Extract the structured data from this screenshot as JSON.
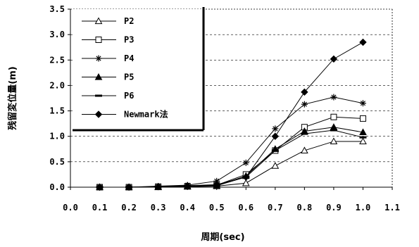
{
  "chart_data": {
    "type": "line",
    "xlabel": "周期(sec)",
    "ylabel": "残留変位量(m)",
    "xlim": [
      0.0,
      1.1
    ],
    "ylim": [
      0.0,
      3.5
    ],
    "x_ticks": [
      "0.0",
      "0.1",
      "0.2",
      "0.3",
      "0.4",
      "0.5",
      "0.6",
      "0.7",
      "0.8",
      "0.9",
      "1.0",
      "1.1"
    ],
    "y_ticks": [
      "0.0",
      "0.5",
      "1.0",
      "1.5",
      "2.0",
      "2.5",
      "3.0",
      "3.5"
    ],
    "grid": "horizontal dashed",
    "legend_position": "top-left",
    "x": [
      0.1,
      0.2,
      0.3,
      0.4,
      0.5,
      0.6,
      0.7,
      0.8,
      0.9,
      1.0
    ],
    "series": [
      {
        "name": "P2",
        "marker": "triangle-open",
        "values": [
          0.0,
          0.0,
          0.0,
          0.01,
          0.02,
          0.08,
          0.42,
          0.72,
          0.9,
          0.9
        ]
      },
      {
        "name": "P3",
        "marker": "square-open",
        "values": [
          0.0,
          0.0,
          0.01,
          0.02,
          0.04,
          0.25,
          0.72,
          1.18,
          1.38,
          1.35
        ]
      },
      {
        "name": "P4",
        "marker": "asterisk",
        "values": [
          0.0,
          0.0,
          0.02,
          0.04,
          0.12,
          0.48,
          1.15,
          1.63,
          1.77,
          1.65
        ]
      },
      {
        "name": "P5",
        "marker": "triangle-filled",
        "values": [
          0.0,
          0.0,
          0.01,
          0.02,
          0.03,
          0.22,
          0.75,
          1.1,
          1.18,
          1.08
        ]
      },
      {
        "name": "P6",
        "marker": "dash",
        "values": [
          0.0,
          0.0,
          0.01,
          0.02,
          0.03,
          0.2,
          0.72,
          1.05,
          1.12,
          0.98
        ]
      },
      {
        "name": "Newmark法",
        "marker": "diamond-filled",
        "values": [
          0.0,
          0.0,
          0.01,
          0.03,
          0.05,
          0.2,
          1.0,
          1.87,
          2.52,
          2.85
        ]
      }
    ]
  }
}
